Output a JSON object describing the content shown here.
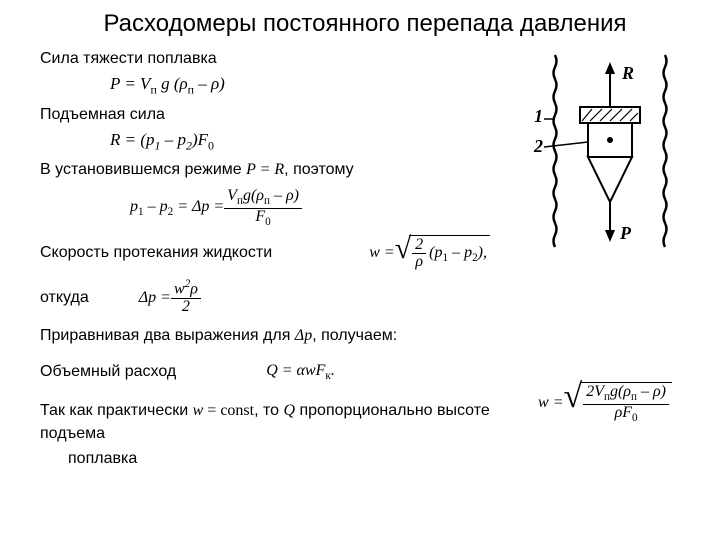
{
  "title": "Расходомеры постоянного перепада давления",
  "lines": {
    "l1": "Сила тяжести поплавка",
    "f1_html": "P = V<span class='sub'>п</span> g (ρ<span class='sub'>п</span> – ρ)",
    "l2": "Подъемная сила",
    "f2_html": "R = (p<span class='subit'>1</span> – p<span class='subit'>2</span>)F<span class='sub'>0</span>",
    "l3_pre": "В установившемся режиме ",
    "l3_f": "P = R",
    "l3_post": ", поэтому",
    "dp_left_html": "p<span class='sub'>1</span> – p<span class='sub'>2</span> = Δp = ",
    "dp_num_html": "V<span class='sub'>п</span>g(ρ<span class='sub'>п</span> – ρ)",
    "dp_den_html": "F<span class='sub'>0</span>",
    "l4": "Скорость протекания жидкости",
    "w_eq_pre": "w = ",
    "w_rad_num": "2",
    "w_rad_den": "ρ",
    "w_paren_html": "(p<span class='sub'>1</span> – p<span class='sub'>2</span>),",
    "l5": "откуда",
    "dp2_pre": "Δp = ",
    "dp2_num_html": "w<span class='sup'>2</span>ρ",
    "dp2_den": "2",
    "l6_pre": "Приравнивая два выражения для ",
    "l6_dp": "Δp",
    "l6_post": ", получаем:",
    "wfinal_pre": "w = ",
    "wfinal_num_html": "2V<span class='sub'>п</span>g(ρ<span class='sub'>п</span> – ρ)",
    "wfinal_den_html": "ρF<span class='sub'>0</span>",
    "l7_label": "Объемный расход",
    "l7_f_html": "Q = αwF<span class='sub'>к</span>.",
    "l8_pre": "Так как практически ",
    "l8_w": "w",
    "l8_const": " = const",
    "l8_mid": ", то ",
    "l8_q": "Q",
    "l8_post": " пропорционально высоте подъема",
    "l8_line2": "поплавка"
  },
  "diagram": {
    "label_R": "R",
    "label_P": "P",
    "label_1": "1",
    "label_2": "2"
  }
}
